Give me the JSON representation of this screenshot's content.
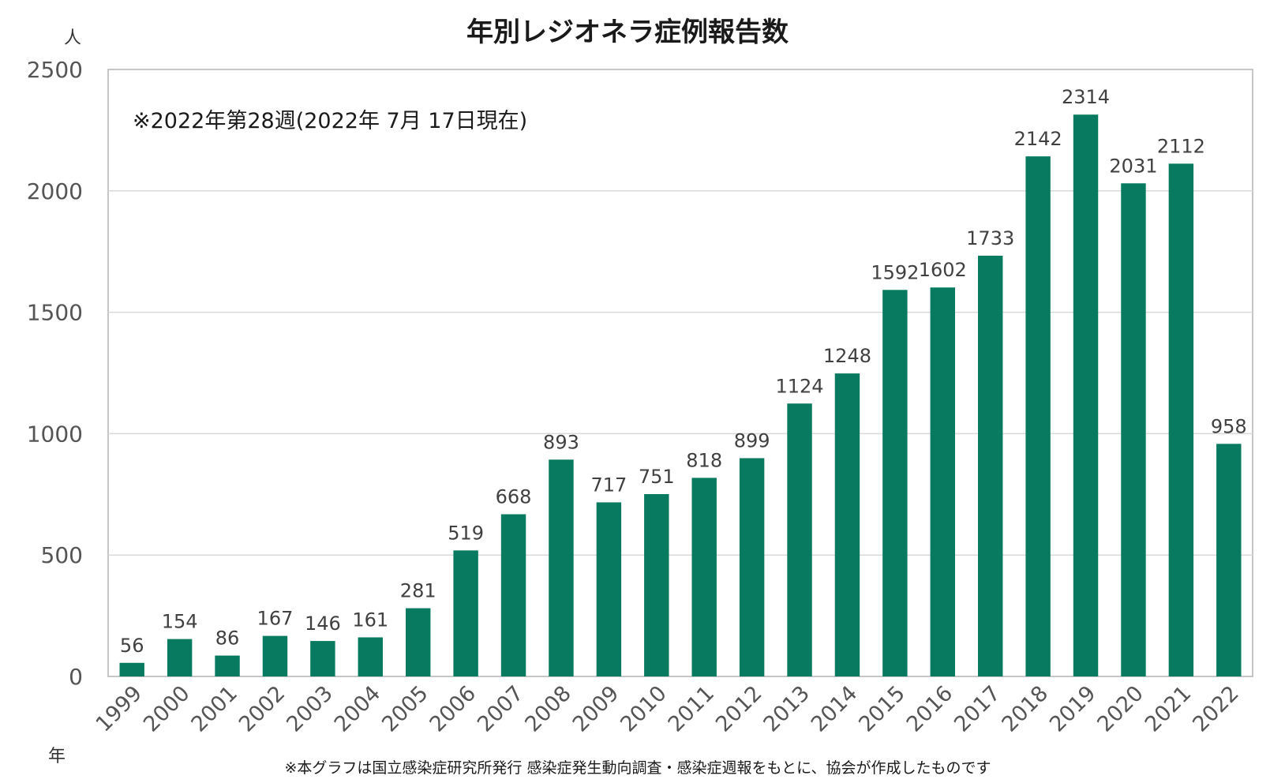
{
  "chart_data": {
    "type": "bar",
    "title": "年別レジオネラ症例報告数",
    "y_unit_label": "人",
    "x_unit_label": "年",
    "annotation": "※2022年第28週(2022年 7月 17日現在)",
    "source_note": "※本グラフは国立感染症研究所発行 感染症発生動向調査・感染症週報をもとに、協会が作成したものです",
    "categories": [
      "1999",
      "2000",
      "2001",
      "2002",
      "2003",
      "2004",
      "2005",
      "2006",
      "2007",
      "2008",
      "2009",
      "2010",
      "2011",
      "2012",
      "2013",
      "2014",
      "2015",
      "2016",
      "2017",
      "2018",
      "2019",
      "2020",
      "2021",
      "2022"
    ],
    "values": [
      56,
      154,
      86,
      167,
      146,
      161,
      281,
      519,
      668,
      893,
      717,
      751,
      818,
      899,
      1124,
      1248,
      1592,
      1602,
      1733,
      2142,
      2314,
      2031,
      2112,
      958
    ],
    "yticks": [
      0,
      500,
      1000,
      1500,
      2000,
      2500
    ],
    "ylim": [
      0,
      2500
    ],
    "bar_color": "#077a5f",
    "grid": true
  }
}
